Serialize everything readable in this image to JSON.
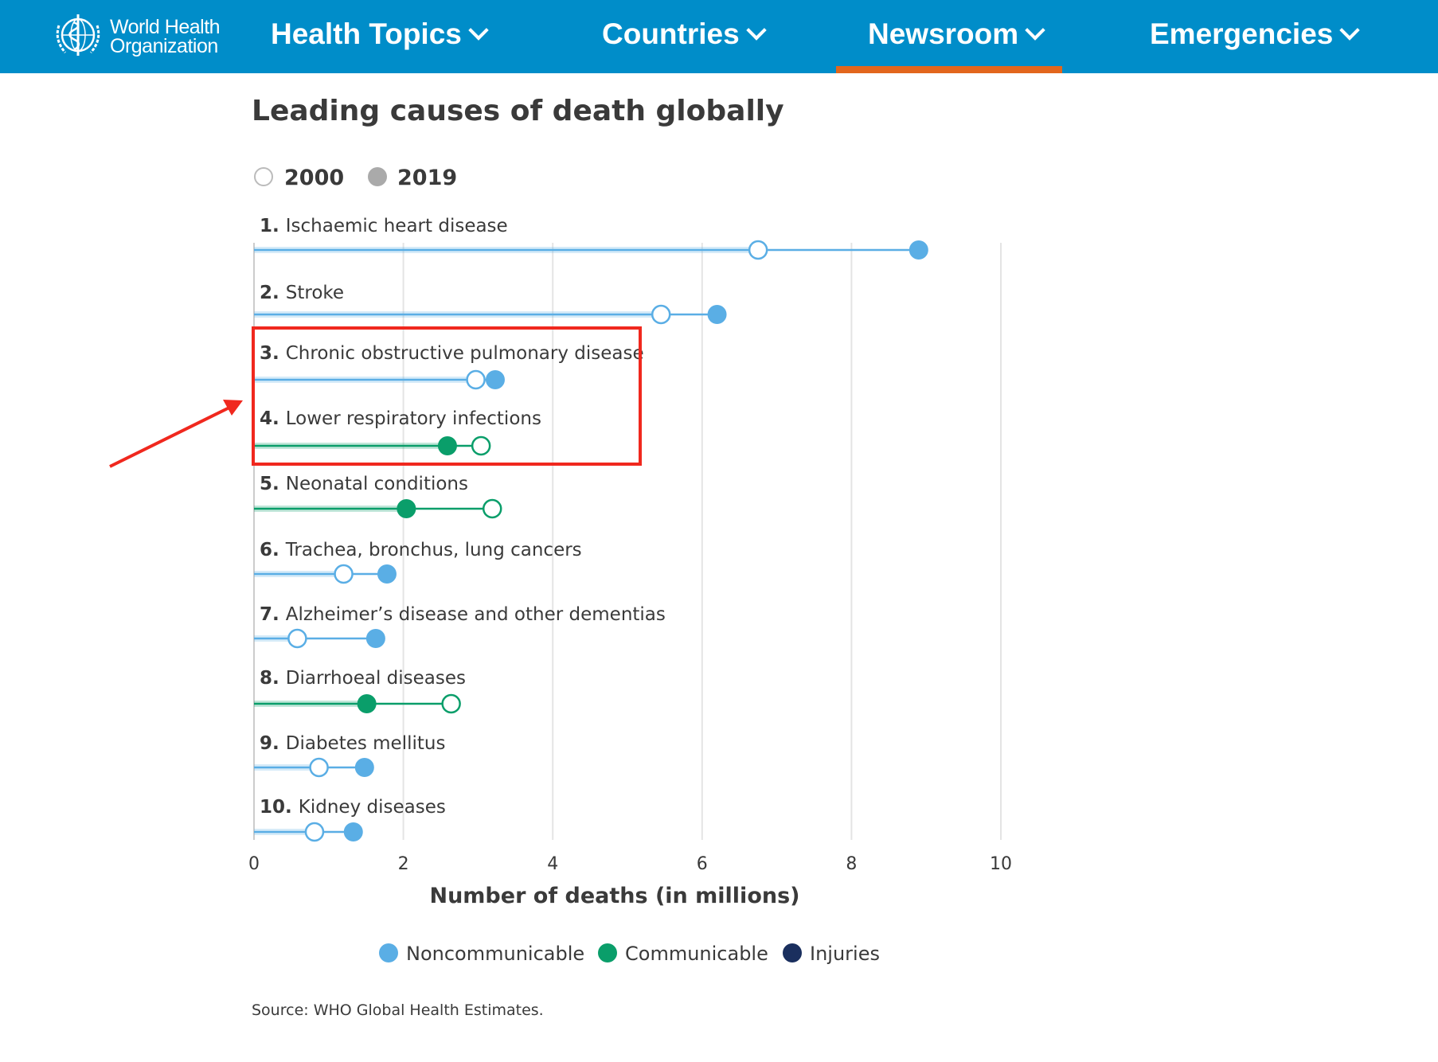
{
  "nav": {
    "logo_text_line1": "World Health",
    "logo_text_line2": "Organization",
    "items": [
      {
        "label": "Health Topics"
      },
      {
        "label": "Countries"
      },
      {
        "label": "Newsroom",
        "active": true
      },
      {
        "label": "Emergencies"
      }
    ],
    "active_color": "#e2661d",
    "bar_color": "#008dc9"
  },
  "chart_data": {
    "type": "dumbbell",
    "title": "Leading causes of death globally",
    "year_toggle": [
      {
        "label": "2000",
        "style": "hollow"
      },
      {
        "label": "2019",
        "style": "filled"
      }
    ],
    "xlabel": "Number of deaths (in millions)",
    "xlim": [
      0,
      10
    ],
    "xticks": [
      "0",
      "2",
      "4",
      "6",
      "8",
      "10"
    ],
    "grid": true,
    "legend": [
      {
        "label": "Noncommunicable",
        "color": "#5aaee5"
      },
      {
        "label": "Communicable",
        "color": "#0a9e6a"
      },
      {
        "label": "Injuries",
        "color": "#1a2f5e"
      }
    ],
    "legend_placement": "bottom",
    "categories": [
      {
        "rank": "1.",
        "label": "Ischaemic heart disease",
        "group": "Noncommunicable",
        "y2000": 6.75,
        "y2019": 8.9
      },
      {
        "rank": "2.",
        "label": "Stroke",
        "group": "Noncommunicable",
        "y2000": 5.45,
        "y2019": 6.2
      },
      {
        "rank": "3.",
        "label": "Chronic obstructive pulmonary disease",
        "group": "Noncommunicable",
        "y2000": 2.97,
        "y2019": 3.23
      },
      {
        "rank": "4.",
        "label": "Lower respiratory infections",
        "group": "Communicable",
        "y2000": 3.04,
        "y2019": 2.59
      },
      {
        "rank": "5.",
        "label": "Neonatal conditions",
        "group": "Communicable",
        "y2000": 3.19,
        "y2019": 2.04
      },
      {
        "rank": "6.",
        "label": "Trachea, bronchus, lung cancers",
        "group": "Noncommunicable",
        "y2000": 1.2,
        "y2019": 1.78
      },
      {
        "rank": "7.",
        "label": "Alzheimer’s disease and other dementias",
        "group": "Noncommunicable",
        "y2000": 0.58,
        "y2019": 1.63
      },
      {
        "rank": "8.",
        "label": "Diarrhoeal diseases",
        "group": "Communicable",
        "y2000": 2.64,
        "y2019": 1.51
      },
      {
        "rank": "9.",
        "label": "Diabetes mellitus",
        "group": "Noncommunicable",
        "y2000": 0.87,
        "y2019": 1.48
      },
      {
        "rank": "10.",
        "label": "Kidney diseases",
        "group": "Noncommunicable",
        "y2000": 0.81,
        "y2019": 1.33
      }
    ],
    "source": "Source: WHO Global Health Estimates.",
    "annotation": {
      "highlight": "red box around items 3 and 4",
      "color": "#f0281e"
    }
  }
}
